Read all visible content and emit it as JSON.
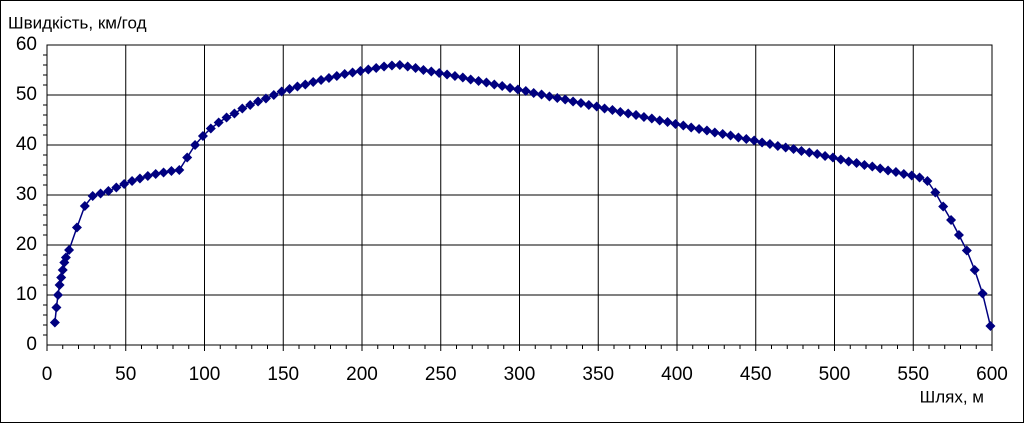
{
  "chart_data": {
    "type": "line",
    "title": "Швидкість, км/год",
    "x_label": "Шлях, м",
    "x": [
      5,
      6,
      7,
      8,
      9,
      10,
      11,
      12,
      14,
      19,
      24,
      29,
      34,
      39,
      44,
      49,
      54,
      59,
      64,
      69,
      74,
      79,
      84,
      89,
      94,
      99,
      104,
      109,
      114,
      119,
      124,
      129,
      134,
      139,
      144,
      149,
      154,
      159,
      164,
      169,
      174,
      179,
      184,
      189,
      194,
      199,
      204,
      209,
      214,
      219,
      224,
      229,
      234,
      239,
      244,
      249,
      254,
      259,
      264,
      269,
      274,
      279,
      284,
      289,
      294,
      299,
      304,
      309,
      314,
      319,
      324,
      329,
      334,
      339,
      344,
      349,
      354,
      359,
      364,
      369,
      374,
      379,
      384,
      389,
      394,
      399,
      404,
      409,
      414,
      419,
      424,
      429,
      434,
      439,
      444,
      449,
      454,
      459,
      464,
      469,
      474,
      479,
      484,
      489,
      494,
      499,
      504,
      509,
      514,
      519,
      524,
      529,
      534,
      539,
      544,
      549,
      554,
      559,
      564,
      569,
      574,
      579,
      584,
      589,
      594,
      599
    ],
    "values": [
      4.5,
      7.5,
      10,
      12,
      13.5,
      15,
      16.5,
      17.5,
      19,
      23.5,
      27.8,
      29.8,
      30.3,
      30.8,
      31.5,
      32.2,
      32.8,
      33.3,
      33.8,
      34.2,
      34.5,
      34.8,
      35,
      37.5,
      40,
      41.8,
      43.3,
      44.5,
      45.5,
      46.3,
      47.3,
      48,
      48.7,
      49.3,
      50,
      50.7,
      51.2,
      51.7,
      52.1,
      52.6,
      53,
      53.4,
      53.8,
      54.2,
      54.5,
      54.8,
      55.1,
      55.4,
      55.7,
      55.9,
      56,
      55.7,
      55.4,
      55,
      54.7,
      54.4,
      54.1,
      53.8,
      53.5,
      53.1,
      52.8,
      52.5,
      52.1,
      51.8,
      51.4,
      51.1,
      50.8,
      50.4,
      50.1,
      49.7,
      49.4,
      49.1,
      48.7,
      48.4,
      48,
      47.7,
      47.3,
      47,
      46.6,
      46.3,
      46,
      45.6,
      45.3,
      44.9,
      44.6,
      44.2,
      43.9,
      43.5,
      43.2,
      42.9,
      42.5,
      42.2,
      41.9,
      41.5,
      41.2,
      40.9,
      40.5,
      40.2,
      39.8,
      39.5,
      39.2,
      38.8,
      38.5,
      38.2,
      37.8,
      37.5,
      37.1,
      36.7,
      36.4,
      36,
      35.7,
      35.3,
      34.9,
      34.6,
      34.2,
      33.9,
      33.5,
      32.8,
      30.5,
      27.7,
      25,
      22,
      18.9,
      15,
      10.3,
      3.8
    ],
    "color": "#000080",
    "xlim": [
      0,
      600
    ],
    "xticks": [
      0,
      50,
      100,
      150,
      200,
      250,
      300,
      350,
      400,
      450,
      500,
      550,
      600
    ],
    "ylim": [
      0,
      60
    ],
    "yticks": [
      0,
      10,
      20,
      30,
      40,
      50,
      60
    ],
    "grid": true
  }
}
